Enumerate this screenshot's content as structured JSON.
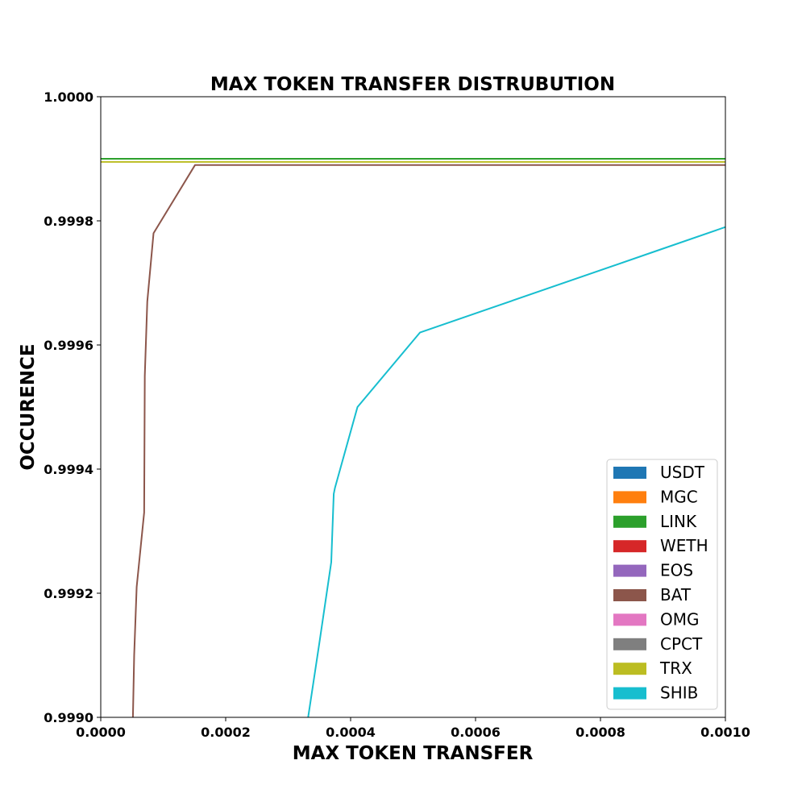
{
  "chart_data": {
    "type": "line",
    "title": "MAX TOKEN TRANSFER DISTRUBUTION",
    "xlabel": "MAX TOKEN TRANSFER",
    "ylabel": "OCCURENCE",
    "xlim": [
      0.0,
      0.001
    ],
    "ylim": [
      0.999,
      1.0
    ],
    "x_ticks": [
      "0.0000",
      "0.0002",
      "0.0004",
      "0.0006",
      "0.0008",
      "0.0010"
    ],
    "x_tick_values": [
      0.0,
      0.0002,
      0.0004,
      0.0006,
      0.0008,
      0.001
    ],
    "y_ticks": [
      "0.9990",
      "0.9992",
      "0.9994",
      "0.9996",
      "0.9998",
      "1.0000"
    ],
    "y_tick_values": [
      0.999,
      0.9992,
      0.9994,
      0.9996,
      0.9998,
      1.0
    ],
    "grid": false,
    "legend_position": "lower-right",
    "series": [
      {
        "name": "USDT",
        "color": "#1f77b4",
        "points": []
      },
      {
        "name": "MGC",
        "color": "#ff7f0e",
        "points": []
      },
      {
        "name": "LINK",
        "color": "#2ca02c",
        "points": [
          [
            0.0,
            0.9999
          ],
          [
            0.001,
            0.9999
          ]
        ]
      },
      {
        "name": "WETH",
        "color": "#d62728",
        "points": []
      },
      {
        "name": "EOS",
        "color": "#9467bd",
        "points": []
      },
      {
        "name": "BAT",
        "color": "#8c564b",
        "points": [
          [
            5.15e-05,
            0.999
          ],
          [
            5.35e-05,
            0.9991
          ],
          [
            5.75e-05,
            0.99921
          ],
          [
            6.95e-05,
            0.99933
          ],
          [
            7.05e-05,
            0.99955
          ],
          [
            7.45e-05,
            0.99967
          ],
          [
            8.45e-05,
            0.99978
          ],
          [
            0.000151,
            0.99989
          ],
          [
            0.001,
            0.99989
          ]
        ]
      },
      {
        "name": "OMG",
        "color": "#e377c2",
        "points": []
      },
      {
        "name": "CPCT",
        "color": "#7f7f7f",
        "points": []
      },
      {
        "name": "TRX",
        "color": "#bcbd22",
        "points": [
          [
            0.0,
            0.999895
          ],
          [
            0.001,
            0.999895
          ]
        ]
      },
      {
        "name": "SHIB",
        "color": "#17becf",
        "points": [
          [
            0.000332,
            0.999
          ],
          [
            0.00035,
            0.99912
          ],
          [
            0.000369,
            0.99925
          ],
          [
            0.000373,
            0.99936
          ],
          [
            0.000375,
            0.99937
          ],
          [
            0.000411,
            0.9995
          ],
          [
            0.000511,
            0.99962
          ],
          [
            0.000885,
            0.99975
          ],
          [
            0.001,
            0.99979
          ]
        ]
      }
    ]
  }
}
